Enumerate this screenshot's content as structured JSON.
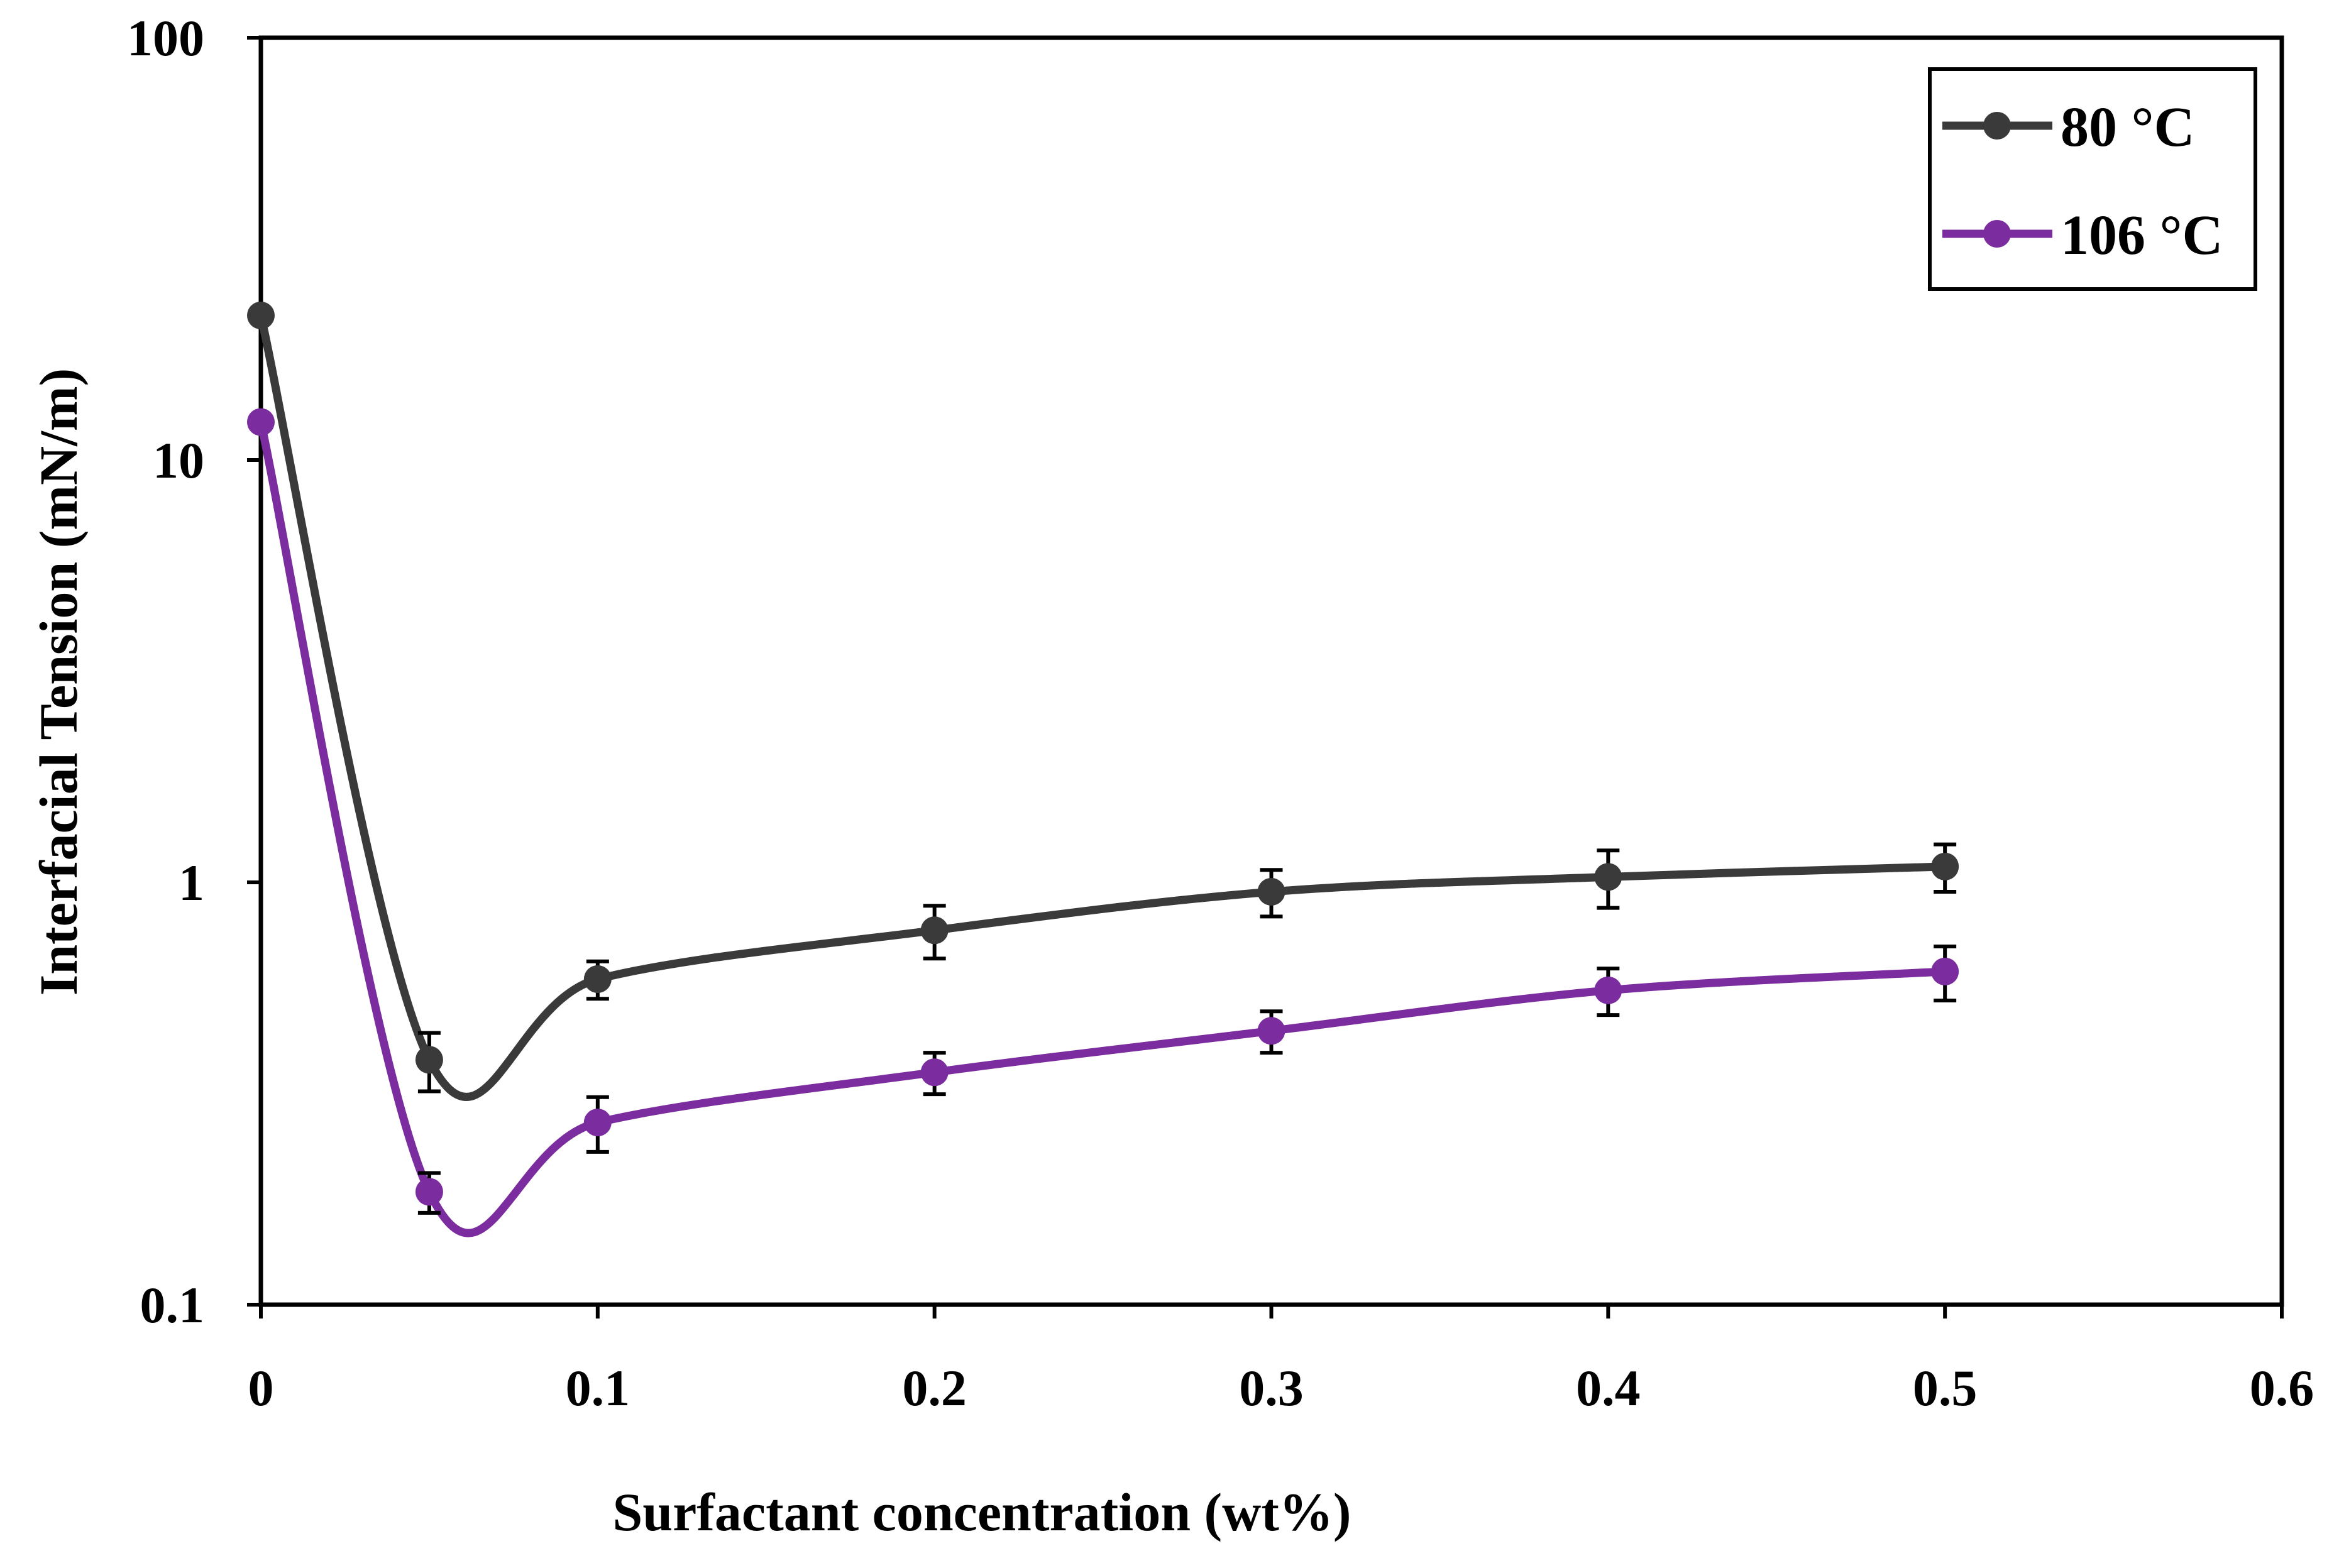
{
  "chart_data": {
    "type": "line",
    "title": "",
    "xlabel": "Surfactant concentration (wt%)",
    "ylabel": "Interfacial Tension (mN/m)",
    "xlim": [
      0,
      0.6
    ],
    "ylim": [
      0.1,
      100
    ],
    "yscale": "log",
    "x_ticks": [
      "0",
      "0.1",
      "0.2",
      "0.3",
      "0.4",
      "0.5",
      "0.6"
    ],
    "y_ticks": [
      "0.1",
      "1",
      "10",
      "100"
    ],
    "grid": false,
    "legend_position": "top-right",
    "series": [
      {
        "name": "80 °C",
        "color": "#3a3a3a",
        "x": [
          0,
          0.05,
          0.1,
          0.2,
          0.3,
          0.4,
          0.5
        ],
        "y": [
          22,
          0.38,
          0.59,
          0.77,
          0.95,
          1.03,
          1.09
        ],
        "err": [
          0,
          0.06,
          0.06,
          0.11,
          0.12,
          0.16,
          0.14
        ]
      },
      {
        "name": "106 °C",
        "color": "#7b2c9e",
        "x": [
          0,
          0.05,
          0.1,
          0.2,
          0.3,
          0.4,
          0.5
        ],
        "y": [
          12.3,
          0.185,
          0.27,
          0.355,
          0.445,
          0.555,
          0.615
        ],
        "err": [
          0,
          0.02,
          0.04,
          0.04,
          0.05,
          0.07,
          0.09
        ]
      }
    ]
  }
}
